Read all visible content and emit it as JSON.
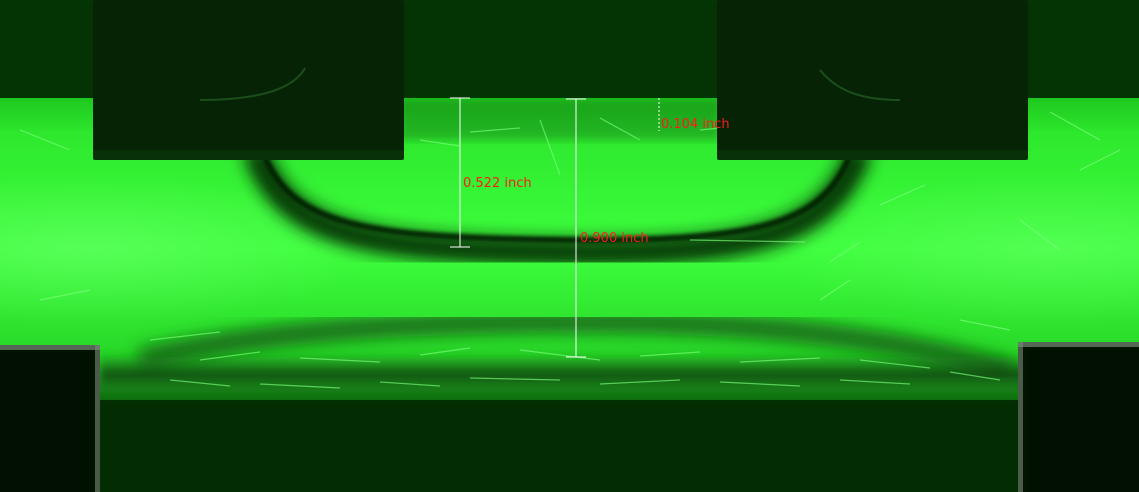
{
  "image": {
    "description_colors": {
      "fluorescence": "#22ff22",
      "dark_background": "#022a02",
      "block": "#062306",
      "label_color": "#ff1a1a",
      "bar_color": "#ffffff"
    }
  },
  "measurements": [
    {
      "id": "gap-top",
      "label": "0.104 inch"
    },
    {
      "id": "meniscus-depth",
      "label": "0.522 inch"
    },
    {
      "id": "channel-height",
      "label": "0.900 inch"
    }
  ]
}
